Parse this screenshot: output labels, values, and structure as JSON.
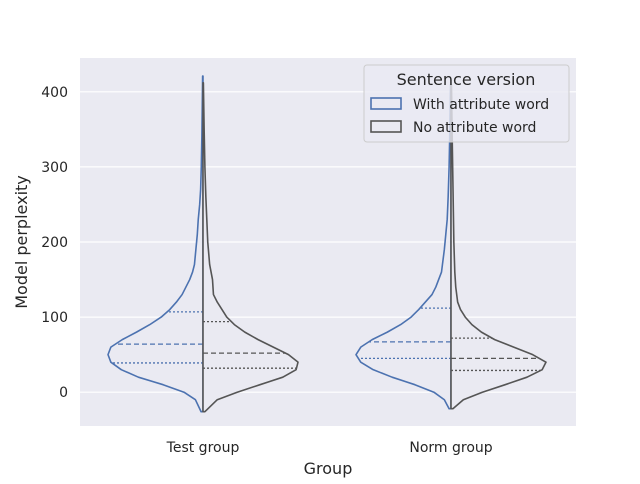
{
  "chart_data": {
    "type": "violin",
    "title": "",
    "xlabel": "Group",
    "ylabel": "Model perplexity",
    "ylim": [
      -45,
      445
    ],
    "yticks": [
      0,
      100,
      200,
      300,
      400
    ],
    "ytick_labels": [
      "0",
      "100",
      "200",
      "300",
      "400"
    ],
    "grid": true,
    "categories": [
      "Test group",
      "Norm group"
    ],
    "legend": {
      "title": "Sentence version",
      "placement": "top-right"
    },
    "series": [
      {
        "name": "With attribute word",
        "side": "left",
        "color": "#4c72b0",
        "groups": [
          {
            "category": "Test group",
            "quartiles": [
              39,
              64,
              107
            ],
            "profile": [
              [
                -26,
                0.02
              ],
              [
                -10,
                0.08
              ],
              [
                0,
                0.2
              ],
              [
                10,
                0.42
              ],
              [
                20,
                0.68
              ],
              [
                30,
                0.86
              ],
              [
                40,
                0.97
              ],
              [
                50,
                1.0
              ],
              [
                60,
                0.97
              ],
              [
                70,
                0.85
              ],
              [
                80,
                0.7
              ],
              [
                90,
                0.56
              ],
              [
                100,
                0.44
              ],
              [
                110,
                0.35
              ],
              [
                120,
                0.28
              ],
              [
                130,
                0.22
              ],
              [
                140,
                0.18
              ],
              [
                150,
                0.14
              ],
              [
                160,
                0.11
              ],
              [
                170,
                0.09
              ],
              [
                190,
                0.075
              ],
              [
                210,
                0.06
              ],
              [
                230,
                0.05
              ],
              [
                250,
                0.035
              ],
              [
                270,
                0.025
              ],
              [
                300,
                0.018
              ],
              [
                340,
                0.012
              ],
              [
                380,
                0.008
              ],
              [
                421,
                0.004
              ]
            ]
          },
          {
            "category": "Norm group",
            "quartiles": [
              45,
              67,
              112
            ],
            "profile": [
              [
                -22,
                0.02
              ],
              [
                -10,
                0.07
              ],
              [
                0,
                0.18
              ],
              [
                10,
                0.38
              ],
              [
                20,
                0.62
              ],
              [
                30,
                0.82
              ],
              [
                40,
                0.95
              ],
              [
                50,
                1.0
              ],
              [
                60,
                0.95
              ],
              [
                70,
                0.83
              ],
              [
                80,
                0.67
              ],
              [
                90,
                0.53
              ],
              [
                100,
                0.42
              ],
              [
                110,
                0.34
              ],
              [
                120,
                0.27
              ],
              [
                130,
                0.2
              ],
              [
                140,
                0.16
              ],
              [
                150,
                0.13
              ],
              [
                160,
                0.1
              ],
              [
                170,
                0.09
              ],
              [
                190,
                0.07
              ],
              [
                210,
                0.055
              ],
              [
                230,
                0.04
              ],
              [
                260,
                0.03
              ],
              [
                300,
                0.02
              ],
              [
                350,
                0.012
              ],
              [
                400,
                0.006
              ],
              [
                410,
                0.004
              ]
            ]
          }
        ]
      },
      {
        "name": "No attribute word",
        "side": "right",
        "color": "#555555",
        "groups": [
          {
            "category": "Test group",
            "quartiles": [
              32,
              52,
              94
            ],
            "profile": [
              [
                -26,
                0.02
              ],
              [
                -10,
                0.15
              ],
              [
                0,
                0.36
              ],
              [
                10,
                0.6
              ],
              [
                20,
                0.84
              ],
              [
                30,
                0.98
              ],
              [
                40,
                1.0
              ],
              [
                50,
                0.9
              ],
              [
                60,
                0.74
              ],
              [
                70,
                0.58
              ],
              [
                80,
                0.44
              ],
              [
                90,
                0.33
              ],
              [
                100,
                0.25
              ],
              [
                110,
                0.2
              ],
              [
                120,
                0.15
              ],
              [
                130,
                0.11
              ],
              [
                150,
                0.1
              ],
              [
                170,
                0.07
              ],
              [
                200,
                0.05
              ],
              [
                230,
                0.04
              ],
              [
                260,
                0.03
              ],
              [
                300,
                0.02
              ],
              [
                350,
                0.012
              ],
              [
                412,
                0.004
              ]
            ]
          },
          {
            "category": "Norm group",
            "quartiles": [
              29,
              45,
              72
            ],
            "profile": [
              [
                -22,
                0.02
              ],
              [
                -10,
                0.13
              ],
              [
                0,
                0.33
              ],
              [
                10,
                0.57
              ],
              [
                20,
                0.8
              ],
              [
                30,
                0.96
              ],
              [
                40,
                1.0
              ],
              [
                50,
                0.86
              ],
              [
                60,
                0.66
              ],
              [
                70,
                0.46
              ],
              [
                80,
                0.32
              ],
              [
                90,
                0.22
              ],
              [
                100,
                0.15
              ],
              [
                110,
                0.1
              ],
              [
                120,
                0.07
              ],
              [
                140,
                0.05
              ],
              [
                160,
                0.04
              ],
              [
                200,
                0.03
              ],
              [
                240,
                0.025
              ],
              [
                280,
                0.02
              ],
              [
                320,
                0.015
              ],
              [
                360,
                0.01
              ],
              [
                400,
                0.006
              ],
              [
                410,
                0.004
              ]
            ]
          }
        ]
      }
    ]
  }
}
